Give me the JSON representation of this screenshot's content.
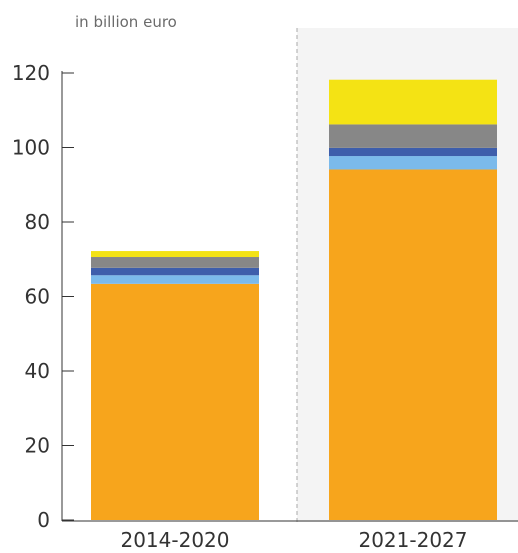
{
  "chart_data": {
    "type": "bar",
    "stacked": true,
    "unit_label": "in billion euro",
    "categories": [
      "2014-2020",
      "2021-2027"
    ],
    "yticks": [
      "0",
      "20",
      "40",
      "60",
      "80",
      "100",
      "120"
    ],
    "ylim": [
      0,
      120
    ],
    "highlight_category": "2021-2027",
    "series": [
      {
        "color": "#f7a51c",
        "values": [
          63.4,
          94.1
        ]
      },
      {
        "color": "#7bbaeb",
        "values": [
          2.3,
          3.6
        ]
      },
      {
        "color": "#3e5eab",
        "values": [
          2.0,
          2.2
        ]
      },
      {
        "color": "#878787",
        "values": [
          2.9,
          6.3
        ]
      },
      {
        "color": "#f4e314",
        "values": [
          1.6,
          12.0
        ]
      }
    ]
  }
}
